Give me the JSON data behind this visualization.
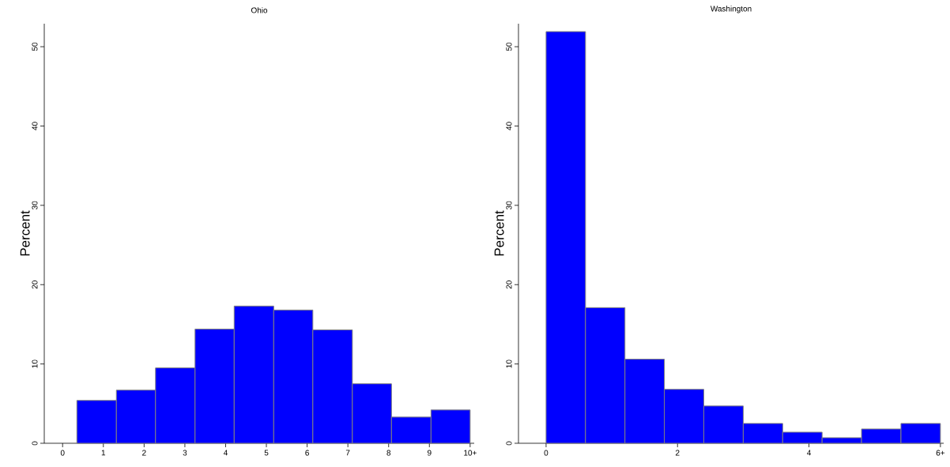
{
  "chart_data": [
    {
      "type": "histogram",
      "title": "Ohio",
      "ylabel": "Percent",
      "bins": [
        0.35,
        1.32,
        2.28,
        3.25,
        4.21,
        5.18,
        6.14,
        7.11,
        8.07,
        9.04,
        10
      ],
      "values": [
        5.4,
        6.7,
        9.5,
        14.4,
        17.3,
        16.8,
        14.3,
        7.5,
        3.3,
        4.2
      ],
      "color": "#0000ff",
      "xlim": [
        -0.45,
        10.1
      ],
      "ylim": [
        0,
        52.9
      ],
      "xticks": [
        0,
        1,
        2,
        3,
        4,
        5,
        6,
        7,
        8,
        9,
        {
          "value": 10,
          "label": "10+"
        }
      ],
      "yticks": [
        0,
        10,
        20,
        30,
        40,
        50
      ]
    },
    {
      "type": "histogram",
      "title": "Washington",
      "ylabel": "Percent",
      "bins": [
        0,
        0.6,
        1.2,
        1.8,
        2.4,
        3.0,
        3.6,
        4.2,
        4.8,
        5.4,
        6.0
      ],
      "values": [
        51.9,
        17.1,
        10.6,
        6.8,
        4.7,
        2.5,
        1.4,
        0.7,
        1.8,
        2.5
      ],
      "color": "#0000ff",
      "xlim": [
        -0.42,
        6.05
      ],
      "ylim": [
        0,
        52.9
      ],
      "xticks": [
        0,
        2,
        4,
        {
          "value": 6,
          "label": "6+"
        }
      ],
      "yticks": [
        0,
        10,
        20,
        30,
        40,
        50
      ]
    }
  ]
}
